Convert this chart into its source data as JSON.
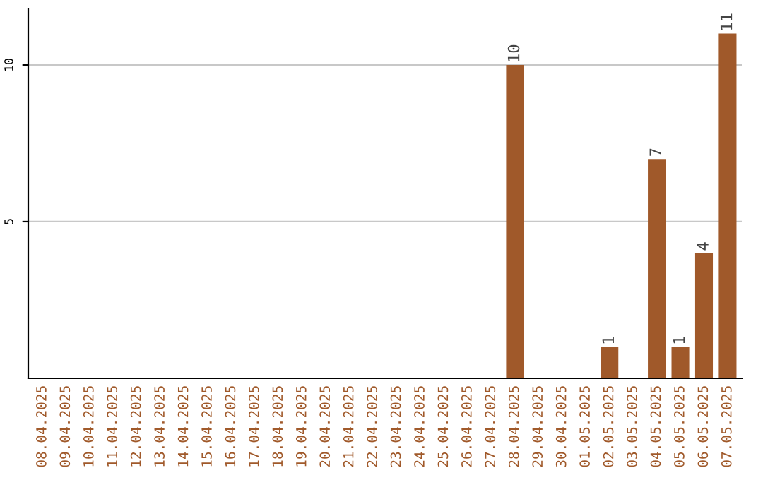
{
  "chart_data": {
    "type": "bar",
    "categories": [
      "08.04.2025",
      "09.04.2025",
      "10.04.2025",
      "11.04.2025",
      "12.04.2025",
      "13.04.2025",
      "14.04.2025",
      "15.04.2025",
      "16.04.2025",
      "17.04.2025",
      "18.04.2025",
      "19.04.2025",
      "20.04.2025",
      "21.04.2025",
      "22.04.2025",
      "23.04.2025",
      "24.04.2025",
      "25.04.2025",
      "26.04.2025",
      "27.04.2025",
      "28.04.2025",
      "29.04.2025",
      "30.04.2025",
      "01.05.2025",
      "02.05.2025",
      "03.05.2025",
      "04.05.2025",
      "05.05.2025",
      "06.05.2025",
      "07.05.2025"
    ],
    "values": [
      0,
      0,
      0,
      0,
      0,
      0,
      0,
      0,
      0,
      0,
      0,
      0,
      0,
      0,
      0,
      0,
      0,
      0,
      0,
      0,
      10,
      0,
      0,
      0,
      1,
      0,
      7,
      1,
      4,
      11
    ],
    "value_labels": [
      null,
      null,
      null,
      null,
      null,
      null,
      null,
      null,
      null,
      null,
      null,
      null,
      null,
      null,
      null,
      null,
      null,
      null,
      null,
      null,
      "10",
      null,
      null,
      null,
      "1",
      null,
      "7",
      "1",
      "4",
      "11"
    ],
    "color": "#a0592a",
    "ylim": [
      0,
      11.8
    ],
    "yticks": [
      5,
      10
    ],
    "grid": "y"
  }
}
